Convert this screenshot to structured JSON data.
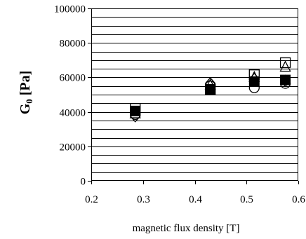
{
  "chart_data": {
    "type": "scatter",
    "title": "",
    "xlabel": "magnetic flux density  [T]",
    "ylabel_main": "G",
    "ylabel_sub": "0",
    "ylabel_unit": " [Pa]",
    "xlim": [
      0.2,
      0.6
    ],
    "ylim": [
      0,
      100000
    ],
    "x_ticks": [
      0.2,
      0.3,
      0.4,
      0.5,
      0.6
    ],
    "x_tick_labels": [
      "0.2",
      "0.3",
      "0.4",
      "0.5",
      "0.6"
    ],
    "y_ticks": [
      0,
      20000,
      40000,
      60000,
      80000,
      100000
    ],
    "y_tick_labels": [
      "0",
      "20000",
      "40000",
      "60000",
      "80000",
      "100000"
    ],
    "minor_grid_step": 5000,
    "grid": "horizontal",
    "legend": "none",
    "series": [
      {
        "marker": "circle-open",
        "x": [
          0.285,
          0.43,
          0.515,
          0.575
        ],
        "y": [
          38500,
          55000,
          54000,
          56500
        ]
      },
      {
        "marker": "diamond-open",
        "x": [
          0.285,
          0.43,
          0.515,
          0.575
        ],
        "y": [
          37500,
          56500,
          59000,
          58000
        ]
      },
      {
        "marker": "triangle-open",
        "x": [
          0.285,
          0.43,
          0.515,
          0.575
        ],
        "y": [
          39000,
          55500,
          60000,
          66000
        ]
      },
      {
        "marker": "square-open",
        "x": [
          0.285,
          0.43,
          0.515,
          0.575
        ],
        "y": [
          42000,
          53000,
          61500,
          68500
        ]
      },
      {
        "marker": "square-filled",
        "x": [
          0.285,
          0.43,
          0.515,
          0.575
        ],
        "y": [
          40500,
          53000,
          57500,
          58500
        ]
      }
    ],
    "colors": {
      "axis": "#000000",
      "marker": "#000000",
      "background": "#ffffff"
    }
  }
}
